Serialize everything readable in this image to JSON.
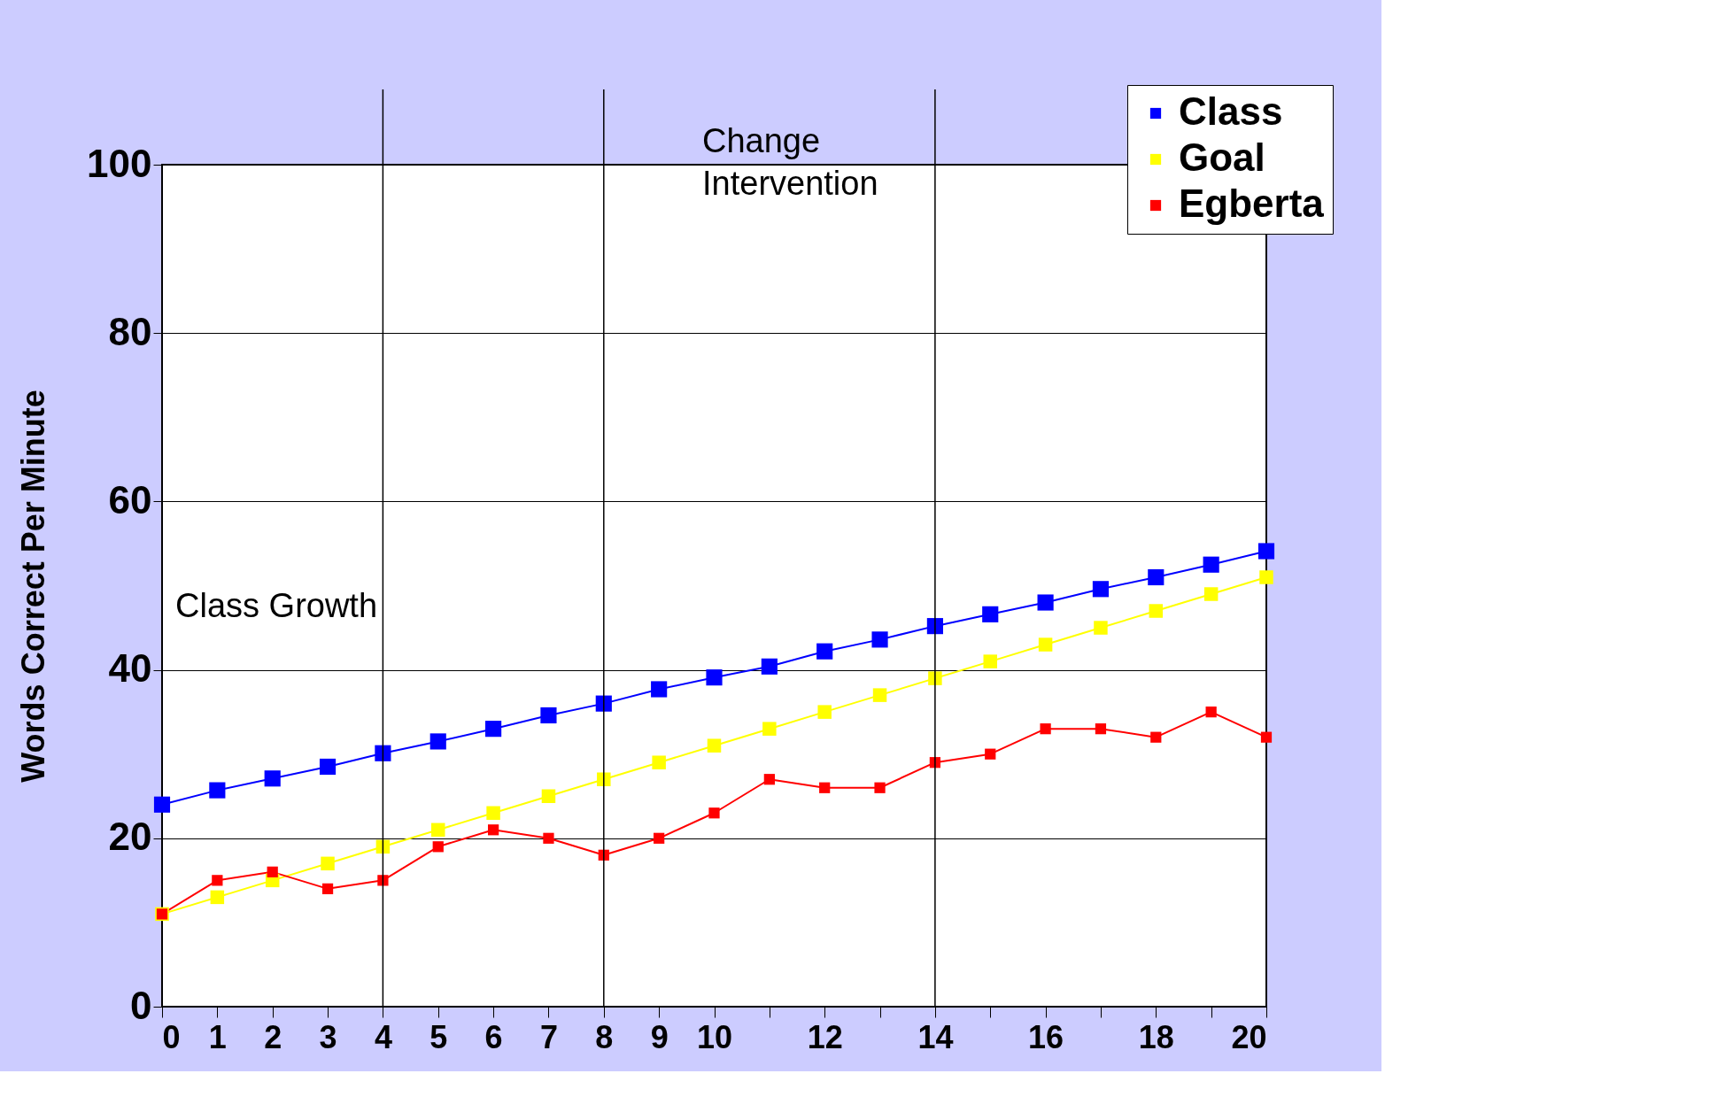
{
  "chart_data": {
    "type": "line",
    "ylabel": "Words Correct Per Minute",
    "x": [
      0,
      1,
      2,
      3,
      4,
      5,
      6,
      7,
      8,
      9,
      10,
      11,
      12,
      13,
      14,
      15,
      16,
      17,
      18,
      19,
      20
    ],
    "series": [
      {
        "name": "Class",
        "color": "#0000ff",
        "values": [
          24,
          25.7,
          27.1,
          28.5,
          30.1,
          31.5,
          33,
          34.6,
          36,
          37.7,
          39.1,
          40.4,
          42.2,
          43.6,
          45.2,
          46.6,
          48,
          49.6,
          51,
          52.5,
          54.1
        ]
      },
      {
        "name": "Goal",
        "color": "#ffff00",
        "values": [
          11,
          13,
          15,
          17,
          19,
          21,
          23,
          25,
          27,
          29,
          31,
          33,
          35,
          37,
          39,
          41,
          43,
          45,
          47,
          49,
          51
        ]
      },
      {
        "name": "Egberta",
        "color": "#ff0000",
        "values": [
          11,
          15,
          16,
          14,
          15,
          19,
          21,
          20,
          18,
          20,
          23,
          27,
          26,
          26,
          29,
          30,
          33,
          33,
          32,
          35,
          32
        ]
      }
    ],
    "xlim": [
      0,
      20
    ],
    "ylim": [
      0,
      100
    ],
    "xticks": [
      0,
      1,
      2,
      3,
      4,
      5,
      6,
      7,
      8,
      9,
      10,
      {
        "value": 11,
        "label": null
      },
      12,
      {
        "value": 13,
        "label": null
      },
      14,
      {
        "value": 15,
        "label": null
      },
      16,
      {
        "value": 17,
        "label": null
      },
      18,
      {
        "value": 19,
        "label": null
      },
      20
    ],
    "yticks": [
      0,
      20,
      40,
      60,
      80,
      100
    ],
    "ref_lines": [
      {
        "axis": "x",
        "value": 4,
        "label": null,
        "color": "#000000"
      },
      {
        "axis": "x",
        "value": 8,
        "label": null,
        "color": "#000000"
      },
      {
        "axis": "x",
        "value": 14,
        "label": null,
        "color": "#000000"
      }
    ],
    "annotations": [
      "Change\nIntervention",
      "Class Growth"
    ],
    "grid": "y",
    "legend": "top right",
    "marker": "square",
    "line_style": "solid"
  }
}
